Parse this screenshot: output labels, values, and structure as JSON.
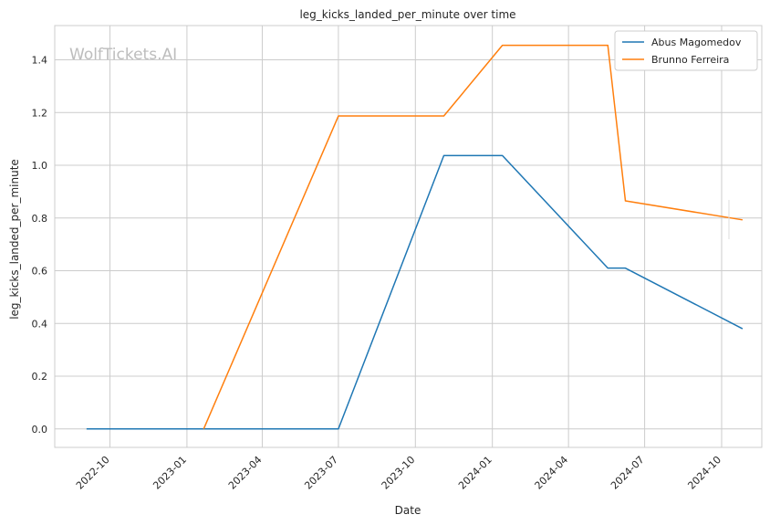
{
  "watermark": "WolfTickets.AI",
  "chart_data": {
    "type": "line",
    "title": "leg_kicks_landed_per_minute over time",
    "xlabel": "Date",
    "ylabel": "leg_kicks_landed_per_minute",
    "x_ticks": [
      "2022-10",
      "2023-01",
      "2023-04",
      "2023-07",
      "2023-10",
      "2024-01",
      "2024-04",
      "2024-07",
      "2024-10"
    ],
    "y_ticks": [
      "0.0",
      "0.2",
      "0.4",
      "0.6",
      "0.8",
      "1.0",
      "1.2",
      "1.4"
    ],
    "ylim": [
      -0.07,
      1.53
    ],
    "xlim": [
      "2022-07-27",
      "2024-11-18"
    ],
    "grid": true,
    "legend_position": "top-right",
    "series": [
      {
        "name": "Abus Magomedov",
        "color": "#1f77b4",
        "points": [
          {
            "x": "2022-09-03",
            "y": 0.0
          },
          {
            "x": "2023-07-01",
            "y": 0.0
          },
          {
            "x": "2023-11-04",
            "y": 1.037
          },
          {
            "x": "2024-01-13",
            "y": 1.037
          },
          {
            "x": "2024-05-18",
            "y": 0.61
          },
          {
            "x": "2024-06-08",
            "y": 0.61
          },
          {
            "x": "2024-10-26",
            "y": 0.38
          }
        ]
      },
      {
        "name": "Brunno Ferreira",
        "color": "#ff7f0e",
        "points": [
          {
            "x": "2023-01-21",
            "y": 0.0
          },
          {
            "x": "2023-07-01",
            "y": 1.187
          },
          {
            "x": "2023-11-04",
            "y": 1.187
          },
          {
            "x": "2024-01-13",
            "y": 1.455
          },
          {
            "x": "2024-05-18",
            "y": 1.455
          },
          {
            "x": "2024-06-08",
            "y": 0.865
          },
          {
            "x": "2024-10-26",
            "y": 0.793
          }
        ]
      }
    ]
  }
}
